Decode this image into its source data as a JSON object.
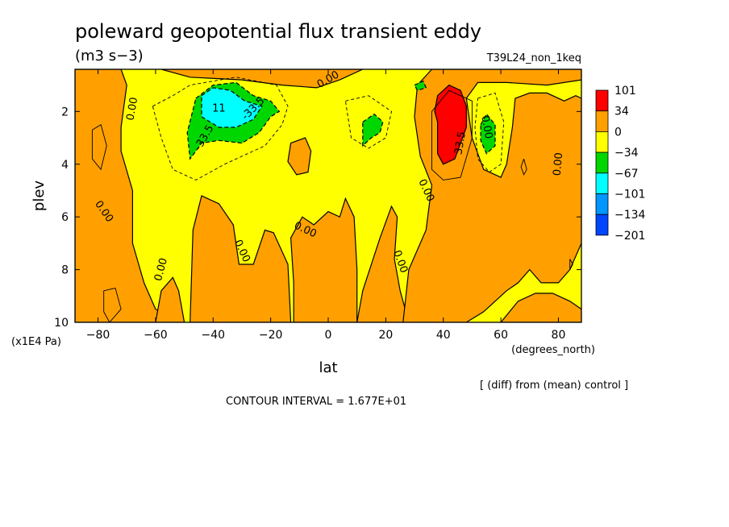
{
  "chart_data": {
    "type": "heatmap",
    "title": "poleward geopotential flux transient eddy",
    "units": "(m3 s−3)",
    "run_label": "T39L24_non_1keq",
    "xlabel": "lat",
    "x_units": "(degrees_north)",
    "ylabel": "plev",
    "y_units": "(x1E4 Pa)",
    "x_ticks": [
      "−80",
      "−60",
      "−40",
      "−20",
      "0",
      "20",
      "40",
      "60",
      "80"
    ],
    "x_tick_values": [
      -80,
      -60,
      -40,
      -20,
      0,
      20,
      40,
      60,
      80
    ],
    "y_ticks": [
      "2",
      "4",
      "6",
      "8",
      "10"
    ],
    "y_tick_values": [
      2,
      4,
      6,
      8,
      10
    ],
    "xlim": [
      -88,
      88
    ],
    "ylim": [
      10,
      0.4
    ],
    "note": "[ (diff) from (mean) control ]",
    "contour_interval": "CONTOUR INTERVAL = 1.677E+01",
    "contour_labels": [
      "0.00",
      "33.5",
      "-33.5",
      "11"
    ],
    "legend_labels": [
      "101",
      "34",
      "0",
      "−34",
      "−67",
      "−101",
      "−134",
      "−201"
    ],
    "legend_colors": [
      "#ff0000",
      "#ffa000",
      "#ffff00",
      "#00d700",
      "#00ffff",
      "#0096ff",
      "#0046ff"
    ],
    "background_color": "#ffff00",
    "regions": [
      {
        "name": "positive-orange",
        "level": 17,
        "color": "#ffa000",
        "points": [
          [
            -88,
            0.4
          ],
          [
            -72,
            0.4
          ],
          [
            -70,
            1.0
          ],
          [
            -72,
            2.6
          ],
          [
            -72,
            3.5
          ],
          [
            -68,
            5.0
          ],
          [
            -68,
            7.0
          ],
          [
            -64,
            8.5
          ],
          [
            -60,
            9.5
          ],
          [
            -52,
            10
          ],
          [
            -88,
            10
          ]
        ]
      },
      {
        "name": "positive-orange",
        "level": 17,
        "color": "#ffa000",
        "points": [
          [
            -60,
            10
          ],
          [
            -58,
            8.8
          ],
          [
            -54,
            8.3
          ],
          [
            -52,
            8.8
          ],
          [
            -50,
            10
          ]
        ]
      },
      {
        "name": "positive-orange",
        "level": 17,
        "color": "#ffa000",
        "points": [
          [
            -48,
            10
          ],
          [
            -47,
            6.5
          ],
          [
            -44,
            5.2
          ],
          [
            -38,
            5.5
          ],
          [
            -33,
            6.3
          ],
          [
            -31,
            7.8
          ],
          [
            -26,
            7.8
          ],
          [
            -22,
            6.5
          ],
          [
            -19,
            6.6
          ],
          [
            -14,
            7.8
          ],
          [
            -13,
            10
          ]
        ]
      },
      {
        "name": "positive-orange",
        "level": 17,
        "color": "#ffa000",
        "points": [
          [
            -12,
            10
          ],
          [
            -12,
            8.5
          ],
          [
            -13,
            6.8
          ],
          [
            -9,
            6.0
          ],
          [
            -5,
            6.3
          ],
          [
            0,
            5.8
          ],
          [
            4,
            6.0
          ],
          [
            6,
            5.3
          ],
          [
            9,
            6.0
          ],
          [
            10,
            8.0
          ],
          [
            10,
            10
          ]
        ]
      },
      {
        "name": "positive-orange",
        "level": 17,
        "color": "#ffa000",
        "points": [
          [
            10,
            10
          ],
          [
            12,
            8.8
          ],
          [
            18,
            6.8
          ],
          [
            22,
            5.6
          ],
          [
            24,
            6.0
          ],
          [
            23,
            7.6
          ],
          [
            25,
            8.8
          ],
          [
            28,
            10
          ]
        ]
      },
      {
        "name": "positive-orange",
        "level": 17,
        "color": "#ffa000",
        "points": [
          [
            -13,
            3.2
          ],
          [
            -8,
            3.0
          ],
          [
            -6,
            3.5
          ],
          [
            -7,
            4.3
          ],
          [
            -11,
            4.4
          ],
          [
            -14,
            3.9
          ]
        ]
      },
      {
        "name": "positive-orange",
        "level": 17,
        "color": "#ffa000",
        "points": [
          [
            -58,
            0.4
          ],
          [
            12,
            0.4
          ],
          [
            4,
            0.8
          ],
          [
            -4,
            1.1
          ],
          [
            -16,
            1.0
          ],
          [
            -30,
            0.8
          ],
          [
            -48,
            0.7
          ]
        ]
      },
      {
        "name": "positive-orange",
        "level": 17,
        "color": "#ffa000",
        "points": [
          [
            26,
            10
          ],
          [
            28,
            8.0
          ],
          [
            34,
            6.5
          ],
          [
            36,
            4.8
          ],
          [
            32,
            3.7
          ],
          [
            30,
            2.2
          ],
          [
            31,
            1.0
          ],
          [
            36,
            0.4
          ],
          [
            88,
            0.4
          ],
          [
            88,
            0.8
          ],
          [
            76,
            1.0
          ],
          [
            62,
            0.9
          ],
          [
            52,
            0.9
          ],
          [
            48,
            1.5
          ],
          [
            50,
            3.0
          ],
          [
            54,
            4.2
          ],
          [
            60,
            4.5
          ],
          [
            62,
            4.0
          ],
          [
            64,
            2.6
          ],
          [
            65,
            1.5
          ],
          [
            70,
            1.3
          ],
          [
            76,
            1.3
          ],
          [
            82,
            1.6
          ],
          [
            86,
            1.4
          ],
          [
            88,
            1.5
          ],
          [
            88,
            7.0
          ],
          [
            84,
            8.0
          ],
          [
            80,
            8.5
          ],
          [
            74,
            8.5
          ],
          [
            70,
            8.0
          ],
          [
            66,
            8.5
          ],
          [
            62,
            8.8
          ],
          [
            58,
            9.2
          ],
          [
            54,
            9.6
          ],
          [
            48,
            10
          ]
        ]
      },
      {
        "name": "positive-orange",
        "level": 17,
        "color": "#ffa000",
        "points": [
          [
            60,
            10
          ],
          [
            66,
            9.2
          ],
          [
            72,
            8.9
          ],
          [
            78,
            8.9
          ],
          [
            84,
            9.2
          ],
          [
            88,
            9.5
          ],
          [
            88,
            10
          ]
        ]
      },
      {
        "name": "positive-red",
        "level": 34,
        "color": "#ff0000",
        "points": [
          [
            38,
            1.4
          ],
          [
            42,
            1.0
          ],
          [
            46,
            1.2
          ],
          [
            48,
            1.8
          ],
          [
            48,
            2.6
          ],
          [
            46,
            3.2
          ],
          [
            44,
            3.8
          ],
          [
            40,
            4.0
          ],
          [
            38,
            3.6
          ],
          [
            38,
            2.4
          ],
          [
            37,
            2.0
          ]
        ]
      },
      {
        "name": "negative-green",
        "level": -34,
        "color": "#00d700",
        "points": [
          [
            -46,
            1.5
          ],
          [
            -40,
            1.0
          ],
          [
            -32,
            0.9
          ],
          [
            -26,
            1.4
          ],
          [
            -20,
            1.6
          ],
          [
            -17,
            2.0
          ],
          [
            -20,
            2.2
          ],
          [
            -24,
            2.8
          ],
          [
            -30,
            3.2
          ],
          [
            -38,
            3.1
          ],
          [
            -44,
            3.2
          ],
          [
            -48,
            3.8
          ],
          [
            -49,
            2.8
          ]
        ]
      },
      {
        "name": "negative-green",
        "level": -34,
        "color": "#00d700",
        "points": [
          [
            12,
            2.4
          ],
          [
            16,
            2.1
          ],
          [
            19,
            2.4
          ],
          [
            18,
            2.8
          ],
          [
            15,
            3.0
          ],
          [
            12,
            3.3
          ]
        ]
      },
      {
        "name": "negative-green",
        "level": -34,
        "color": "#00d700",
        "points": [
          [
            30,
            1.0
          ],
          [
            33,
            0.85
          ],
          [
            34,
            1.1
          ],
          [
            31,
            1.2
          ]
        ]
      },
      {
        "name": "negative-green",
        "level": -34,
        "color": "#00d700",
        "points": [
          [
            53,
            2.5
          ],
          [
            55,
            2.1
          ],
          [
            58,
            2.5
          ],
          [
            58,
            3.3
          ],
          [
            55,
            3.6
          ],
          [
            53,
            3.1
          ]
        ]
      },
      {
        "name": "negative-cyan",
        "level": -67,
        "color": "#00ffff",
        "points": [
          [
            -44,
            1.4
          ],
          [
            -40,
            1.1
          ],
          [
            -34,
            1.2
          ],
          [
            -29,
            1.6
          ],
          [
            -23,
            1.8
          ],
          [
            -26,
            2.3
          ],
          [
            -32,
            2.6
          ],
          [
            -38,
            2.6
          ],
          [
            -44,
            2.2
          ]
        ]
      }
    ],
    "contour_lines": [
      {
        "level": 0,
        "dashed": false,
        "points": [
          [
            -82,
            2.7
          ],
          [
            -79,
            2.5
          ],
          [
            -77,
            3.3
          ],
          [
            -79,
            4.2
          ],
          [
            -82,
            3.8
          ],
          [
            -82,
            2.7
          ]
        ]
      },
      {
        "level": -17,
        "dashed": true,
        "points": [
          [
            -61,
            1.8
          ],
          [
            -54,
            1.4
          ],
          [
            -48,
            1.0
          ],
          [
            -32,
            0.7
          ],
          [
            -18,
            1.0
          ],
          [
            -14,
            1.8
          ],
          [
            -16,
            2.5
          ],
          [
            -22,
            3.3
          ],
          [
            -36,
            4.0
          ],
          [
            -46,
            4.6
          ],
          [
            -54,
            4.2
          ],
          [
            -58,
            3.0
          ],
          [
            -61,
            1.8
          ]
        ]
      },
      {
        "level": 17,
        "dashed": false,
        "points": [
          [
            42,
            1.2
          ],
          [
            50,
            1.6
          ],
          [
            50,
            3.0
          ],
          [
            46,
            4.5
          ],
          [
            40,
            4.6
          ],
          [
            36,
            4.2
          ],
          [
            36,
            2.0
          ],
          [
            42,
            1.2
          ]
        ]
      },
      {
        "level": -17,
        "dashed": true,
        "points": [
          [
            52,
            1.5
          ],
          [
            58,
            1.3
          ],
          [
            61,
            2.4
          ],
          [
            60,
            4.0
          ],
          [
            56,
            4.3
          ],
          [
            52,
            3.8
          ],
          [
            51,
            2.6
          ],
          [
            52,
            1.5
          ]
        ]
      },
      {
        "level": -17,
        "dashed": true,
        "points": [
          [
            6,
            1.6
          ],
          [
            14,
            1.4
          ],
          [
            22,
            2.0
          ],
          [
            20,
            3.0
          ],
          [
            14,
            3.4
          ],
          [
            8,
            3.0
          ],
          [
            6,
            1.6
          ]
        ]
      },
      {
        "level": 17,
        "dashed": false,
        "points": [
          [
            -78,
            8.8
          ],
          [
            -74,
            8.7
          ],
          [
            -72,
            9.5
          ],
          [
            -76,
            10
          ],
          [
            -78,
            9.6
          ],
          [
            -78,
            8.8
          ]
        ]
      },
      {
        "level": 17,
        "dashed": false,
        "points": [
          [
            68,
            3.8
          ],
          [
            69,
            4.2
          ],
          [
            68,
            4.4
          ],
          [
            67,
            4.1
          ],
          [
            68,
            3.8
          ]
        ]
      },
      {
        "level": 17,
        "dashed": false,
        "points": [
          [
            84,
            7.6
          ],
          [
            85,
            7.8
          ],
          [
            84,
            8.0
          ],
          [
            84,
            7.6
          ]
        ]
      }
    ],
    "contour_label_positions": [
      {
        "text": "0.00",
        "lat": -68,
        "plev": 1.9,
        "rot": -80
      },
      {
        "text": "0.00",
        "lat": -78,
        "plev": 5.8,
        "rot": 55
      },
      {
        "text": "0.00",
        "lat": -58,
        "plev": 8.0,
        "rot": -75
      },
      {
        "text": "0.00",
        "lat": -30,
        "plev": 7.3,
        "rot": 65
      },
      {
        "text": "0.00",
        "lat": -8,
        "plev": 6.5,
        "rot": 25
      },
      {
        "text": "0.00",
        "lat": 0,
        "plev": 0.8,
        "rot": -30
      },
      {
        "text": "0.00",
        "lat": 25,
        "plev": 7.7,
        "rot": 70
      },
      {
        "text": "0.00",
        "lat": 34,
        "plev": 5.0,
        "rot": 65
      },
      {
        "text": "0.00",
        "lat": 80,
        "plev": 4.0,
        "rot": -85
      },
      {
        "text": "0.00",
        "lat": 55,
        "plev": 2.6,
        "rot": 80
      },
      {
        "text": "33.5",
        "lat": 46,
        "plev": 3.2,
        "rot": -80
      },
      {
        "text": "-33.5",
        "lat": -43,
        "plev": 3.0,
        "rot": -60
      },
      {
        "text": "-33.5",
        "lat": -26,
        "plev": 1.9,
        "rot": -45
      },
      {
        "text": "11",
        "lat": -38,
        "plev": 1.9,
        "rot": 0
      }
    ]
  }
}
